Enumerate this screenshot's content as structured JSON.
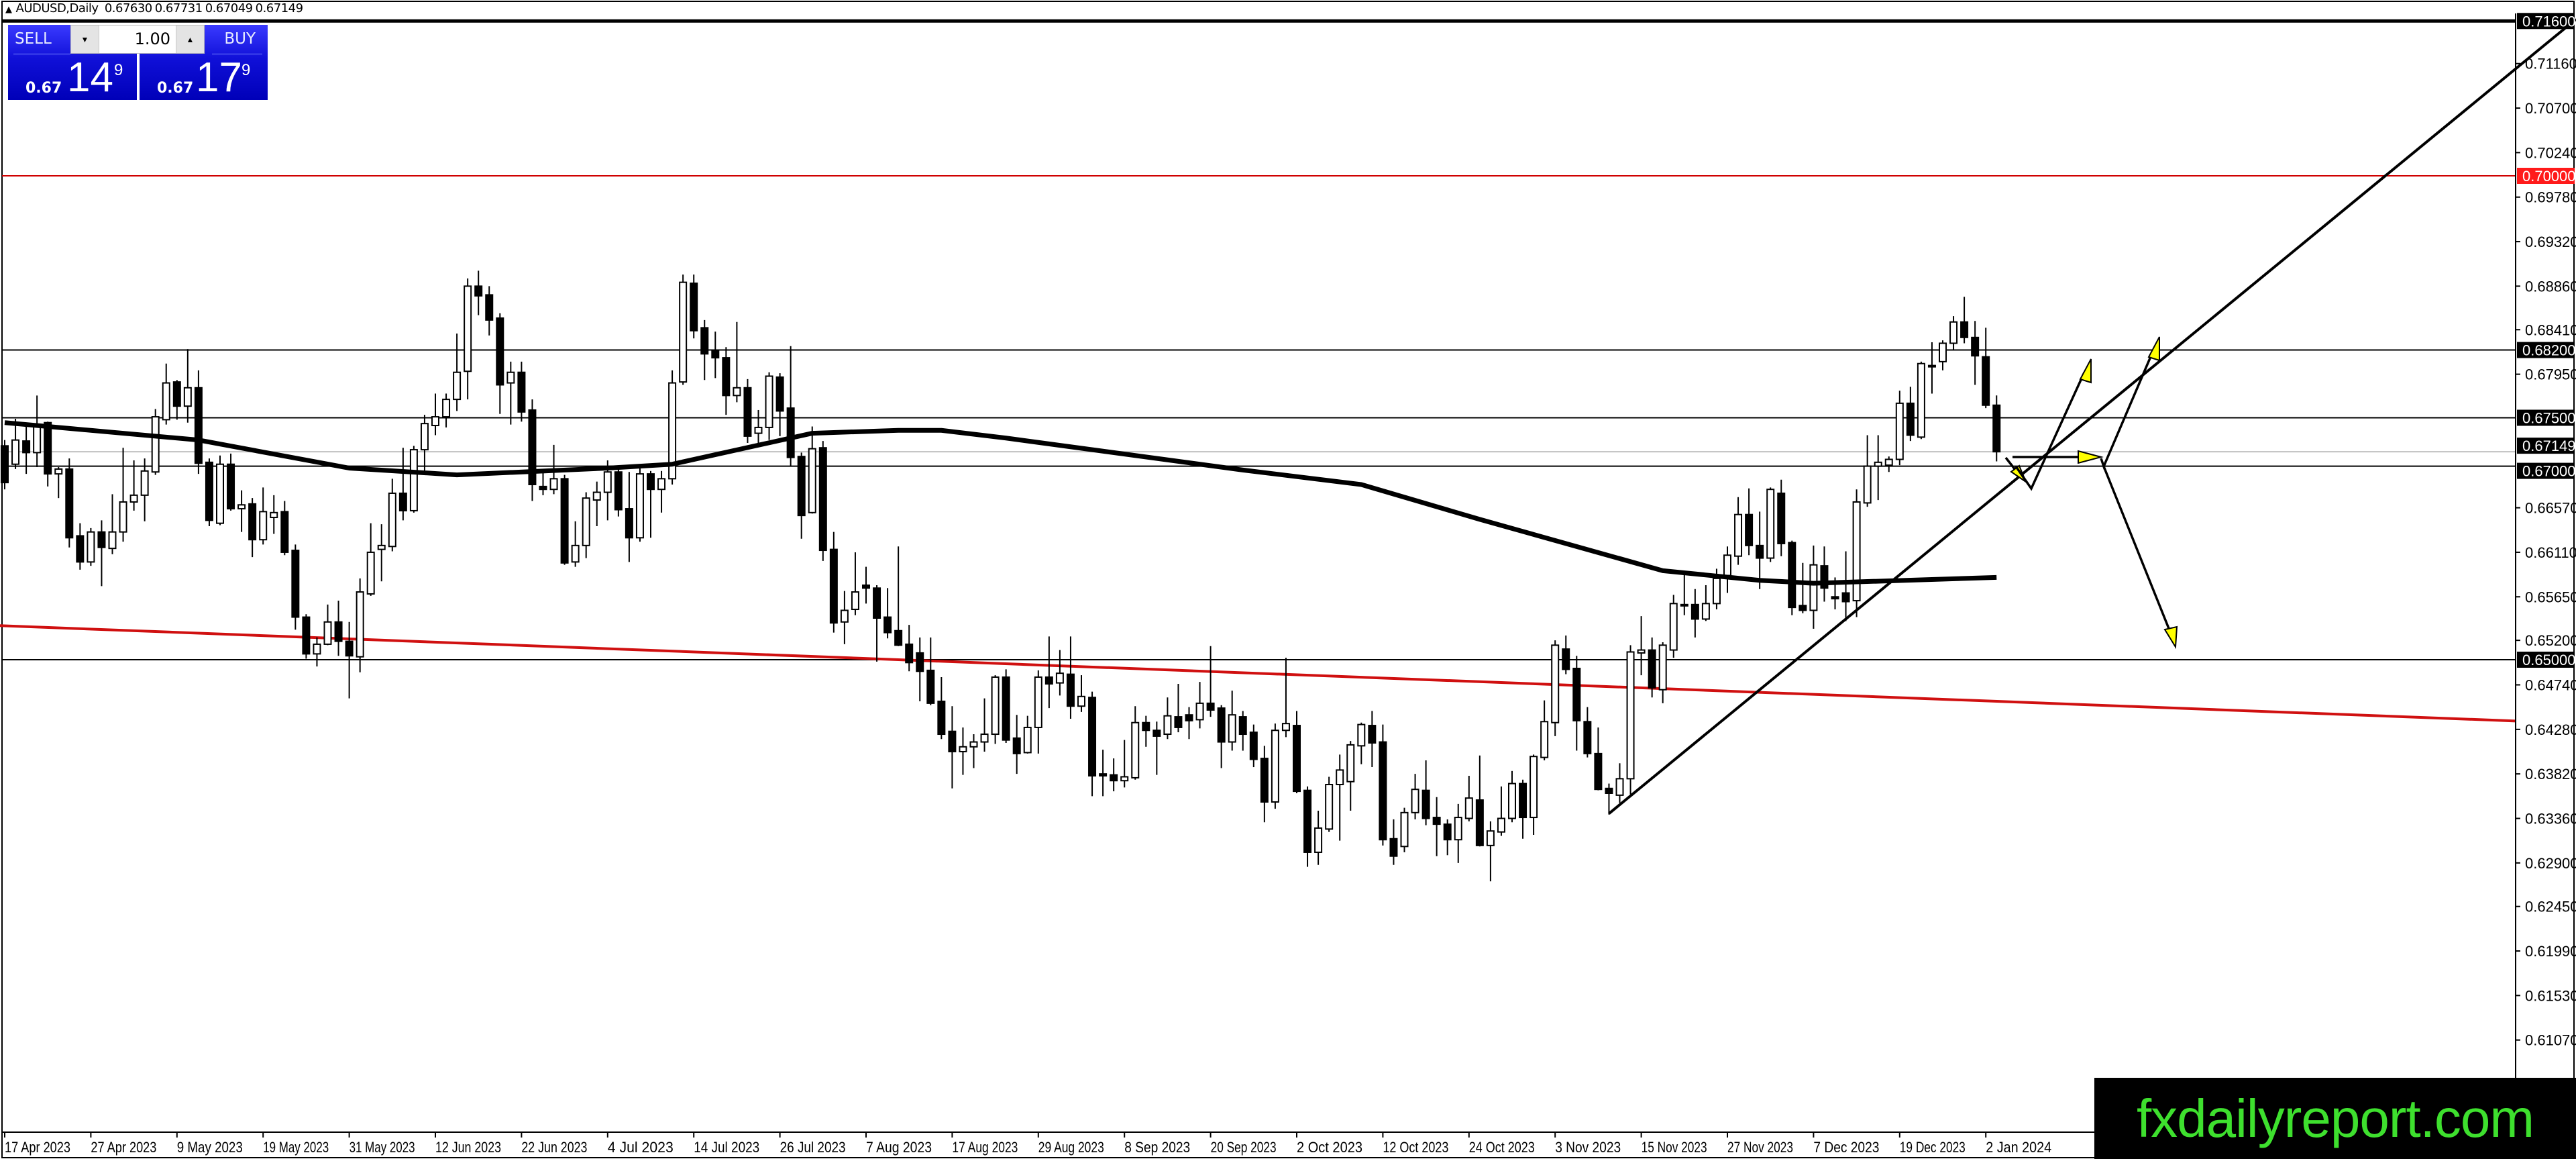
{
  "header": {
    "symbol_timeframe": "AUDUSD,Daily",
    "ohlc": [
      "0.67630",
      "0.67731",
      "0.67049",
      "0.67149"
    ]
  },
  "trade_panel": {
    "sell_label": "SELL",
    "buy_label": "BUY",
    "lot_value": "1.00",
    "sell_price": {
      "prefix": "0.67",
      "big": "14",
      "sup": "9"
    },
    "buy_price": {
      "prefix": "0.67",
      "big": "17",
      "sup": "9"
    },
    "icons": {
      "lot_down": "triangle-down-icon",
      "lot_up": "triangle-up-icon"
    }
  },
  "watermark": "fxdailyreport.com",
  "colors": {
    "panel_blue": "#1010d8",
    "bear_candle": "#000000",
    "bull_candle": "#ffffff",
    "resistance_red": "#ff0000",
    "trendline_red": "#d01010",
    "arrow_fill": "#ffff00",
    "watermark_text": "#3ee02e"
  },
  "chart_data": {
    "type": "candlestick",
    "symbol": "AUDUSD",
    "timeframe": "Daily",
    "y_range": [
      0.6012,
      0.7168
    ],
    "grid": false,
    "y_ticks": [
      "0.71160",
      "0.70700",
      "0.70240",
      "0.69780",
      "0.69320",
      "0.68860",
      "0.68410",
      "0.67950",
      "0.66570",
      "0.66110",
      "0.65650",
      "0.65200",
      "0.64740",
      "0.64280",
      "0.63820",
      "0.63360",
      "0.62900",
      "0.62450",
      "0.61990",
      "0.61530",
      "0.61070"
    ],
    "x_ticks": [
      "17 Apr 2023",
      "27 Apr 2023",
      "9 May 2023",
      "19 May 2023",
      "31 May 2023",
      "12 Jun 2023",
      "22 Jun 2023",
      "4 Jul 2023",
      "14 Jul 2023",
      "26 Jul 2023",
      "7 Aug 2023",
      "17 Aug 2023",
      "29 Aug 2023",
      "8 Sep 2023",
      "20 Sep 2023",
      "2 Oct 2023",
      "12 Oct 2023",
      "24 Oct 2023",
      "3 Nov 2023",
      "15 Nov 2023",
      "27 Nov 2023",
      "7 Dec 2023",
      "19 Dec 2023",
      "2 Jan 2024"
    ],
    "price_labels": [
      {
        "value": "0.71600",
        "style": "black"
      },
      {
        "value": "0.70000",
        "style": "red"
      },
      {
        "value": "0.68200",
        "style": "black"
      },
      {
        "value": "0.67500",
        "style": "black"
      },
      {
        "value": "0.67149",
        "style": "black"
      },
      {
        "value": "0.67000",
        "style": "black"
      },
      {
        "value": "0.65000",
        "style": "black"
      }
    ],
    "hlines": [
      {
        "price": 0.716,
        "color": "#000000",
        "weight": "thick"
      },
      {
        "price": 0.7,
        "color": "#d00000",
        "weight": "thin"
      },
      {
        "price": 0.682,
        "color": "#000000",
        "weight": "thin"
      },
      {
        "price": 0.675,
        "color": "#000000",
        "weight": "thin"
      },
      {
        "price": 0.67149,
        "color": "#c0c0c0",
        "weight": "thin"
      },
      {
        "price": 0.67,
        "color": "#000000",
        "weight": "thin"
      },
      {
        "price": 0.65,
        "color": "#000000",
        "weight": "thin"
      }
    ],
    "trendlines": [
      {
        "name": "",
        "color": "#d01010",
        "points": [
          [
            "2023-04-17",
            0.6535
          ],
          [
            "2024-01-03",
            0.6457
          ]
        ]
      },
      {
        "name": "",
        "color": "#000000",
        "points": [
          [
            "2023-11-10",
            0.6341
          ],
          [
            "2024-01-03",
            0.667
          ]
        ]
      }
    ],
    "moving_average": {
      "color": "#000000",
      "points": [
        [
          "2023-04-17",
          0.6745
        ],
        [
          "2023-05-11",
          0.6727
        ],
        [
          "2023-05-31",
          0.6698
        ],
        [
          "2023-06-14",
          0.6691
        ],
        [
          "2023-07-04",
          0.6698
        ],
        [
          "2023-07-12",
          0.6702
        ],
        [
          "2023-07-31",
          0.6734
        ],
        [
          "2023-08-10",
          0.6737
        ],
        [
          "2023-08-16",
          0.6737
        ],
        [
          "2023-08-24",
          0.6729
        ],
        [
          "2023-09-25",
          0.6696
        ],
        [
          "2023-10-10",
          0.6681
        ],
        [
          "2023-10-25",
          0.6645
        ],
        [
          "2023-11-17",
          0.6592
        ],
        [
          "2023-11-30",
          0.6582
        ],
        [
          "2023-12-07",
          0.6579
        ],
        [
          "2024-01-03",
          0.6585
        ]
      ]
    },
    "candles": [
      [
        0.6721,
        0.6727,
        0.6676,
        0.6683
      ],
      [
        0.6702,
        0.6749,
        0.6697,
        0.6727
      ],
      [
        0.6726,
        0.6743,
        0.6692,
        0.6714
      ],
      [
        0.6714,
        0.6773,
        0.6699,
        0.6743
      ],
      [
        0.6745,
        0.6746,
        0.6679,
        0.6692
      ],
      [
        0.6692,
        0.6699,
        0.6667,
        0.6697
      ],
      [
        0.6697,
        0.6708,
        0.6616,
        0.6626
      ],
      [
        0.6628,
        0.6641,
        0.6593,
        0.6601
      ],
      [
        0.6601,
        0.6636,
        0.6597,
        0.6632
      ],
      [
        0.6632,
        0.6644,
        0.6576,
        0.6616
      ],
      [
        0.6615,
        0.6671,
        0.6609,
        0.6632
      ],
      [
        0.6632,
        0.6719,
        0.6622,
        0.6663
      ],
      [
        0.6663,
        0.6706,
        0.6654,
        0.667
      ],
      [
        0.667,
        0.6708,
        0.6643,
        0.6695
      ],
      [
        0.6694,
        0.6759,
        0.6691,
        0.6751
      ],
      [
        0.6748,
        0.6806,
        0.6743,
        0.6786
      ],
      [
        0.6787,
        0.6789,
        0.6748,
        0.6762
      ],
      [
        0.6762,
        0.6821,
        0.6745,
        0.6781
      ],
      [
        0.6781,
        0.6799,
        0.6692,
        0.6703
      ],
      [
        0.6704,
        0.6708,
        0.6638,
        0.6644
      ],
      [
        0.6641,
        0.6711,
        0.6639,
        0.6702
      ],
      [
        0.6702,
        0.6713,
        0.6654,
        0.6656
      ],
      [
        0.6656,
        0.6675,
        0.6632,
        0.666
      ],
      [
        0.6661,
        0.6667,
        0.6606,
        0.6624
      ],
      [
        0.6624,
        0.6678,
        0.6619,
        0.6653
      ],
      [
        0.6647,
        0.667,
        0.663,
        0.6652
      ],
      [
        0.6653,
        0.6664,
        0.6608,
        0.6611
      ],
      [
        0.6613,
        0.6619,
        0.6531,
        0.6544
      ],
      [
        0.6544,
        0.6547,
        0.6501,
        0.6506
      ],
      [
        0.6506,
        0.6523,
        0.6493,
        0.6516
      ],
      [
        0.6516,
        0.6557,
        0.6515,
        0.6539
      ],
      [
        0.6539,
        0.6561,
        0.6504,
        0.6519
      ],
      [
        0.6519,
        0.6539,
        0.646,
        0.6504
      ],
      [
        0.6503,
        0.6584,
        0.6487,
        0.657
      ],
      [
        0.6568,
        0.6641,
        0.6566,
        0.6611
      ],
      [
        0.6614,
        0.664,
        0.6581,
        0.6618
      ],
      [
        0.6617,
        0.6687,
        0.6612,
        0.6672
      ],
      [
        0.6672,
        0.6719,
        0.6644,
        0.6654
      ],
      [
        0.6654,
        0.6721,
        0.6652,
        0.6717
      ],
      [
        0.6717,
        0.6753,
        0.6692,
        0.6744
      ],
      [
        0.6742,
        0.6775,
        0.6732,
        0.6751
      ],
      [
        0.6751,
        0.6775,
        0.674,
        0.6769
      ],
      [
        0.6769,
        0.6837,
        0.6757,
        0.6797
      ],
      [
        0.6798,
        0.6894,
        0.6769,
        0.6886
      ],
      [
        0.6886,
        0.6902,
        0.6856,
        0.6876
      ],
      [
        0.6877,
        0.6886,
        0.6835,
        0.6851
      ],
      [
        0.6853,
        0.6858,
        0.6754,
        0.6784
      ],
      [
        0.6786,
        0.6808,
        0.6743,
        0.6797
      ],
      [
        0.6797,
        0.6808,
        0.6746,
        0.6756
      ],
      [
        0.6758,
        0.6769,
        0.6664,
        0.6681
      ],
      [
        0.6679,
        0.6695,
        0.667,
        0.6676
      ],
      [
        0.6676,
        0.6722,
        0.6671,
        0.6687
      ],
      [
        0.6687,
        0.6691,
        0.6598,
        0.66
      ],
      [
        0.6601,
        0.6643,
        0.6596,
        0.6618
      ],
      [
        0.6618,
        0.6673,
        0.6605,
        0.6667
      ],
      [
        0.6665,
        0.6684,
        0.6638,
        0.6673
      ],
      [
        0.6673,
        0.6706,
        0.6644,
        0.6694
      ],
      [
        0.6694,
        0.6698,
        0.6648,
        0.6655
      ],
      [
        0.6656,
        0.6694,
        0.6601,
        0.6626
      ],
      [
        0.6626,
        0.6702,
        0.6622,
        0.6692
      ],
      [
        0.6692,
        0.6695,
        0.6626,
        0.6676
      ],
      [
        0.6676,
        0.6695,
        0.6652,
        0.6687
      ],
      [
        0.6687,
        0.6799,
        0.6681,
        0.6786
      ],
      [
        0.6787,
        0.6898,
        0.6784,
        0.689
      ],
      [
        0.6889,
        0.6898,
        0.6832,
        0.684
      ],
      [
        0.6843,
        0.6851,
        0.6789,
        0.6816
      ],
      [
        0.6819,
        0.6839,
        0.6791,
        0.6812
      ],
      [
        0.6812,
        0.6823,
        0.6753,
        0.6773
      ],
      [
        0.6773,
        0.6849,
        0.6766,
        0.6781
      ],
      [
        0.6781,
        0.679,
        0.6724,
        0.6731
      ],
      [
        0.6734,
        0.6758,
        0.6723,
        0.674
      ],
      [
        0.674,
        0.6797,
        0.6727,
        0.6793
      ],
      [
        0.6792,
        0.6796,
        0.6731,
        0.6757
      ],
      [
        0.676,
        0.6824,
        0.67,
        0.6709
      ],
      [
        0.671,
        0.6714,
        0.6625,
        0.6649
      ],
      [
        0.6652,
        0.6741,
        0.6651,
        0.6718
      ],
      [
        0.6719,
        0.6726,
        0.6602,
        0.6613
      ],
      [
        0.6614,
        0.6632,
        0.6528,
        0.6538
      ],
      [
        0.6539,
        0.6571,
        0.6516,
        0.6551
      ],
      [
        0.6552,
        0.6611,
        0.6546,
        0.657
      ],
      [
        0.6577,
        0.6596,
        0.6558,
        0.6574
      ],
      [
        0.6574,
        0.6577,
        0.6498,
        0.6543
      ],
      [
        0.6544,
        0.6574,
        0.6522,
        0.6528
      ],
      [
        0.653,
        0.6617,
        0.6514,
        0.6515
      ],
      [
        0.6516,
        0.6536,
        0.6488,
        0.6497
      ],
      [
        0.6507,
        0.6523,
        0.6457,
        0.6488
      ],
      [
        0.6489,
        0.6523,
        0.6453,
        0.6455
      ],
      [
        0.6457,
        0.6482,
        0.6418,
        0.6423
      ],
      [
        0.6426,
        0.6452,
        0.6367,
        0.6405
      ],
      [
        0.6405,
        0.643,
        0.6381,
        0.641
      ],
      [
        0.641,
        0.6423,
        0.6388,
        0.6415
      ],
      [
        0.6415,
        0.646,
        0.6405,
        0.6423
      ],
      [
        0.6423,
        0.6484,
        0.6413,
        0.6482
      ],
      [
        0.6482,
        0.649,
        0.6414,
        0.6417
      ],
      [
        0.6419,
        0.6443,
        0.6382,
        0.6403
      ],
      [
        0.6404,
        0.6442,
        0.6403,
        0.643
      ],
      [
        0.643,
        0.6489,
        0.6403,
        0.6482
      ],
      [
        0.6482,
        0.6524,
        0.645,
        0.6475
      ],
      [
        0.6476,
        0.651,
        0.6463,
        0.6486
      ],
      [
        0.6485,
        0.6524,
        0.6439,
        0.6452
      ],
      [
        0.6452,
        0.6484,
        0.6446,
        0.6462
      ],
      [
        0.6461,
        0.6467,
        0.6359,
        0.638
      ],
      [
        0.6382,
        0.6407,
        0.6359,
        0.638
      ],
      [
        0.6381,
        0.6398,
        0.6364,
        0.6375
      ],
      [
        0.6375,
        0.6417,
        0.6368,
        0.6379
      ],
      [
        0.6378,
        0.6452,
        0.6376,
        0.6435
      ],
      [
        0.6435,
        0.6442,
        0.641,
        0.6427
      ],
      [
        0.6427,
        0.6436,
        0.6381,
        0.6421
      ],
      [
        0.6423,
        0.6461,
        0.6418,
        0.6442
      ],
      [
        0.6441,
        0.6475,
        0.6425,
        0.643
      ],
      [
        0.6443,
        0.6451,
        0.6418,
        0.6437
      ],
      [
        0.6438,
        0.6477,
        0.6429,
        0.6455
      ],
      [
        0.6455,
        0.6514,
        0.6441,
        0.6448
      ],
      [
        0.645,
        0.6453,
        0.6388,
        0.6415
      ],
      [
        0.6415,
        0.6468,
        0.6406,
        0.6443
      ],
      [
        0.6441,
        0.6447,
        0.6406,
        0.6423
      ],
      [
        0.6425,
        0.6433,
        0.6389,
        0.6397
      ],
      [
        0.6398,
        0.6411,
        0.6332,
        0.6353
      ],
      [
        0.6353,
        0.6434,
        0.6346,
        0.6427
      ],
      [
        0.6427,
        0.6502,
        0.642,
        0.6434
      ],
      [
        0.6432,
        0.6447,
        0.6362,
        0.6364
      ],
      [
        0.6365,
        0.6369,
        0.6286,
        0.6301
      ],
      [
        0.6301,
        0.6344,
        0.6288,
        0.6326
      ],
      [
        0.6325,
        0.6379,
        0.6322,
        0.6371
      ],
      [
        0.6371,
        0.6402,
        0.6313,
        0.6386
      ],
      [
        0.6374,
        0.6416,
        0.6344,
        0.6412
      ],
      [
        0.6411,
        0.6435,
        0.6392,
        0.6433
      ],
      [
        0.6432,
        0.6447,
        0.6389,
        0.6414
      ],
      [
        0.6415,
        0.6433,
        0.6308,
        0.6314
      ],
      [
        0.6315,
        0.6335,
        0.6288,
        0.6297
      ],
      [
        0.6307,
        0.6347,
        0.6301,
        0.6342
      ],
      [
        0.6342,
        0.6382,
        0.6335,
        0.6366
      ],
      [
        0.6365,
        0.6396,
        0.6329,
        0.6336
      ],
      [
        0.6337,
        0.6358,
        0.6297,
        0.633
      ],
      [
        0.633,
        0.6335,
        0.6298,
        0.6314
      ],
      [
        0.6314,
        0.6351,
        0.629,
        0.6337
      ],
      [
        0.6336,
        0.638,
        0.6333,
        0.6357
      ],
      [
        0.6355,
        0.6401,
        0.6307,
        0.6308
      ],
      [
        0.6308,
        0.6333,
        0.6271,
        0.6323
      ],
      [
        0.6322,
        0.6369,
        0.6318,
        0.6336
      ],
      [
        0.6336,
        0.6385,
        0.6332,
        0.6372
      ],
      [
        0.6372,
        0.6376,
        0.6315,
        0.6337
      ],
      [
        0.6337,
        0.6402,
        0.6319,
        0.64
      ],
      [
        0.6399,
        0.6458,
        0.6396,
        0.6436
      ],
      [
        0.6435,
        0.652,
        0.6421,
        0.6515
      ],
      [
        0.6511,
        0.6525,
        0.6485,
        0.649
      ],
      [
        0.6491,
        0.6504,
        0.6406,
        0.6437
      ],
      [
        0.6436,
        0.6451,
        0.6399,
        0.6403
      ],
      [
        0.6403,
        0.643,
        0.6365,
        0.6366
      ],
      [
        0.6367,
        0.6372,
        0.634,
        0.6362
      ],
      [
        0.636,
        0.6393,
        0.6352,
        0.6377
      ],
      [
        0.6377,
        0.6515,
        0.6361,
        0.6508
      ],
      [
        0.6507,
        0.6545,
        0.6484,
        0.651
      ],
      [
        0.651,
        0.6523,
        0.6461,
        0.6471
      ],
      [
        0.6469,
        0.6518,
        0.6455,
        0.6515
      ],
      [
        0.651,
        0.6567,
        0.6502,
        0.6558
      ],
      [
        0.6556,
        0.659,
        0.6546,
        0.6557
      ],
      [
        0.6557,
        0.6573,
        0.6523,
        0.6542
      ],
      [
        0.6542,
        0.6577,
        0.654,
        0.6558
      ],
      [
        0.6558,
        0.6594,
        0.6552,
        0.6584
      ],
      [
        0.6587,
        0.6617,
        0.6569,
        0.6608
      ],
      [
        0.6607,
        0.6668,
        0.6598,
        0.665
      ],
      [
        0.665,
        0.6677,
        0.6608,
        0.6618
      ],
      [
        0.6618,
        0.6653,
        0.6573,
        0.6605
      ],
      [
        0.6605,
        0.6678,
        0.6601,
        0.6676
      ],
      [
        0.6672,
        0.6686,
        0.6607,
        0.662
      ],
      [
        0.6621,
        0.6623,
        0.6546,
        0.6554
      ],
      [
        0.6556,
        0.66,
        0.6548,
        0.6551
      ],
      [
        0.6551,
        0.6618,
        0.6532,
        0.6598
      ],
      [
        0.6597,
        0.6617,
        0.656,
        0.6574
      ],
      [
        0.6565,
        0.6585,
        0.6552,
        0.6563
      ],
      [
        0.6569,
        0.6612,
        0.654,
        0.656
      ],
      [
        0.6561,
        0.6676,
        0.6544,
        0.6663
      ],
      [
        0.6662,
        0.6732,
        0.6658,
        0.67
      ],
      [
        0.67,
        0.6732,
        0.6665,
        0.6704
      ],
      [
        0.6701,
        0.671,
        0.6694,
        0.6707
      ],
      [
        0.6707,
        0.6778,
        0.6701,
        0.6765
      ],
      [
        0.6765,
        0.6782,
        0.6726,
        0.6732
      ],
      [
        0.673,
        0.6808,
        0.6728,
        0.6806
      ],
      [
        0.6803,
        0.6828,
        0.6775,
        0.6804
      ],
      [
        0.6808,
        0.683,
        0.6799,
        0.6827
      ],
      [
        0.6827,
        0.6855,
        0.682,
        0.6849
      ],
      [
        0.6849,
        0.6875,
        0.6827,
        0.6833
      ],
      [
        0.6833,
        0.685,
        0.6784,
        0.6814
      ],
      [
        0.6813,
        0.6843,
        0.676,
        0.6763
      ],
      [
        0.6763,
        0.67731,
        0.67049,
        0.67149
      ]
    ]
  }
}
